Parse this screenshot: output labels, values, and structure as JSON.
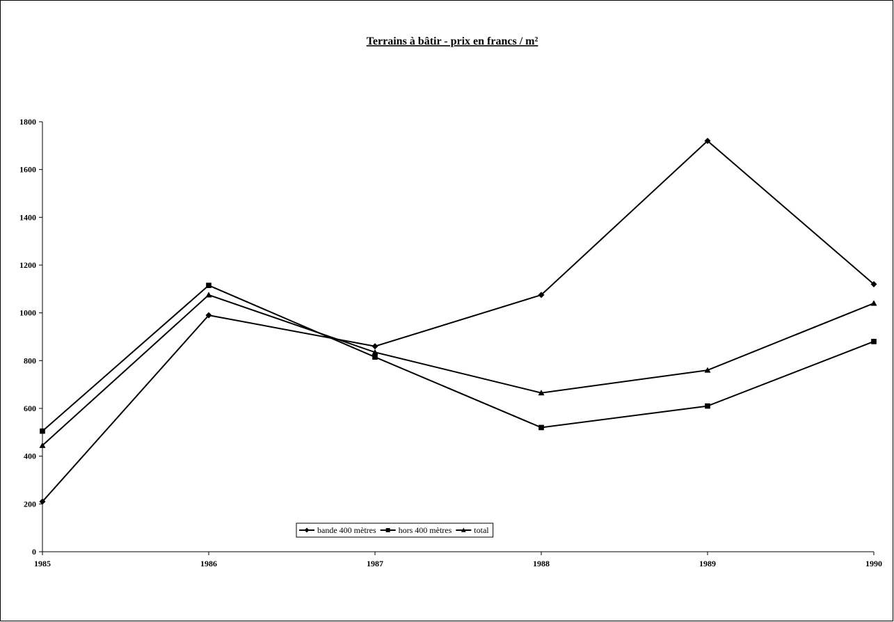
{
  "chart_data": {
    "type": "line",
    "title": "Terrains à bâtir - prix en francs / m²",
    "xlabel": "",
    "ylabel": "",
    "x": [
      "1985",
      "1986",
      "1987",
      "1988",
      "1989",
      "1990"
    ],
    "ylim": [
      0,
      1800
    ],
    "yticks": [
      "0",
      "200",
      "400",
      "600",
      "800",
      "1000",
      "1200",
      "1400",
      "1600",
      "1800"
    ],
    "grid": false,
    "legend_position": "bottom",
    "series": [
      {
        "name": "bande 400 mètres",
        "marker": "diamond",
        "color": "#000000",
        "values": [
          210,
          990,
          860,
          1075,
          1720,
          1120
        ]
      },
      {
        "name": "hors 400 mètres",
        "marker": "square",
        "color": "#000000",
        "values": [
          505,
          1115,
          815,
          520,
          610,
          880
        ]
      },
      {
        "name": "total",
        "marker": "triangle",
        "color": "#000000",
        "values": [
          445,
          1075,
          835,
          665,
          760,
          1040
        ]
      }
    ]
  }
}
